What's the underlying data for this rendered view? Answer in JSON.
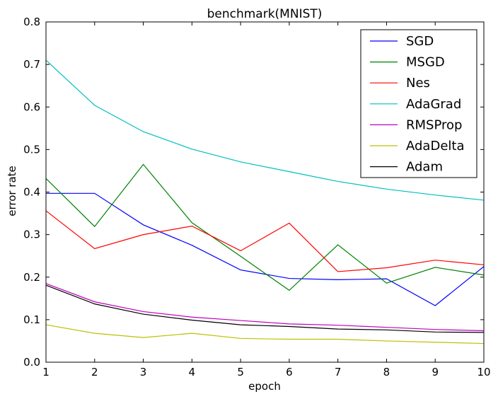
{
  "chart_data": {
    "type": "line",
    "title": "benchmark(MNIST)",
    "xlabel": "epoch",
    "ylabel": "error rate",
    "xlim": [
      1,
      10
    ],
    "ylim": [
      0,
      0.8
    ],
    "xticks": [
      1,
      2,
      3,
      4,
      5,
      6,
      7,
      8,
      9,
      10
    ],
    "yticks": [
      0.0,
      0.1,
      0.2,
      0.3,
      0.4,
      0.5,
      0.6,
      0.7,
      0.8
    ],
    "ytick_labels": [
      "0.0",
      "0.1",
      "0.2",
      "0.3",
      "0.4",
      "0.5",
      "0.6",
      "0.7",
      "0.8"
    ],
    "x": [
      1,
      2,
      3,
      4,
      5,
      6,
      7,
      8,
      9,
      10
    ],
    "legend_position": "top-right",
    "grid": false,
    "series": [
      {
        "name": "SGD",
        "color": "#0000ff",
        "values": [
          0.397,
          0.397,
          0.323,
          0.275,
          0.217,
          0.197,
          0.194,
          0.196,
          0.133,
          0.225
        ]
      },
      {
        "name": "MSGD",
        "color": "#008000",
        "values": [
          0.432,
          0.319,
          0.465,
          0.328,
          0.249,
          0.169,
          0.276,
          0.186,
          0.223,
          0.205
        ]
      },
      {
        "name": "Nes",
        "color": "#ff0000",
        "values": [
          0.356,
          0.267,
          0.3,
          0.32,
          0.262,
          0.327,
          0.213,
          0.222,
          0.24,
          0.229
        ]
      },
      {
        "name": "AdaGrad",
        "color": "#00bfbf",
        "values": [
          0.71,
          0.604,
          0.542,
          0.501,
          0.471,
          0.448,
          0.425,
          0.407,
          0.393,
          0.381
        ]
      },
      {
        "name": "RMSProp",
        "color": "#bf00bf",
        "values": [
          0.185,
          0.142,
          0.119,
          0.106,
          0.098,
          0.09,
          0.087,
          0.082,
          0.077,
          0.074
        ]
      },
      {
        "name": "AdaDelta",
        "color": "#bfbf00",
        "values": [
          0.088,
          0.068,
          0.058,
          0.068,
          0.056,
          0.054,
          0.054,
          0.05,
          0.047,
          0.044
        ]
      },
      {
        "name": "Adam",
        "color": "#000000",
        "values": [
          0.181,
          0.137,
          0.113,
          0.099,
          0.088,
          0.084,
          0.078,
          0.076,
          0.071,
          0.07
        ]
      }
    ]
  }
}
